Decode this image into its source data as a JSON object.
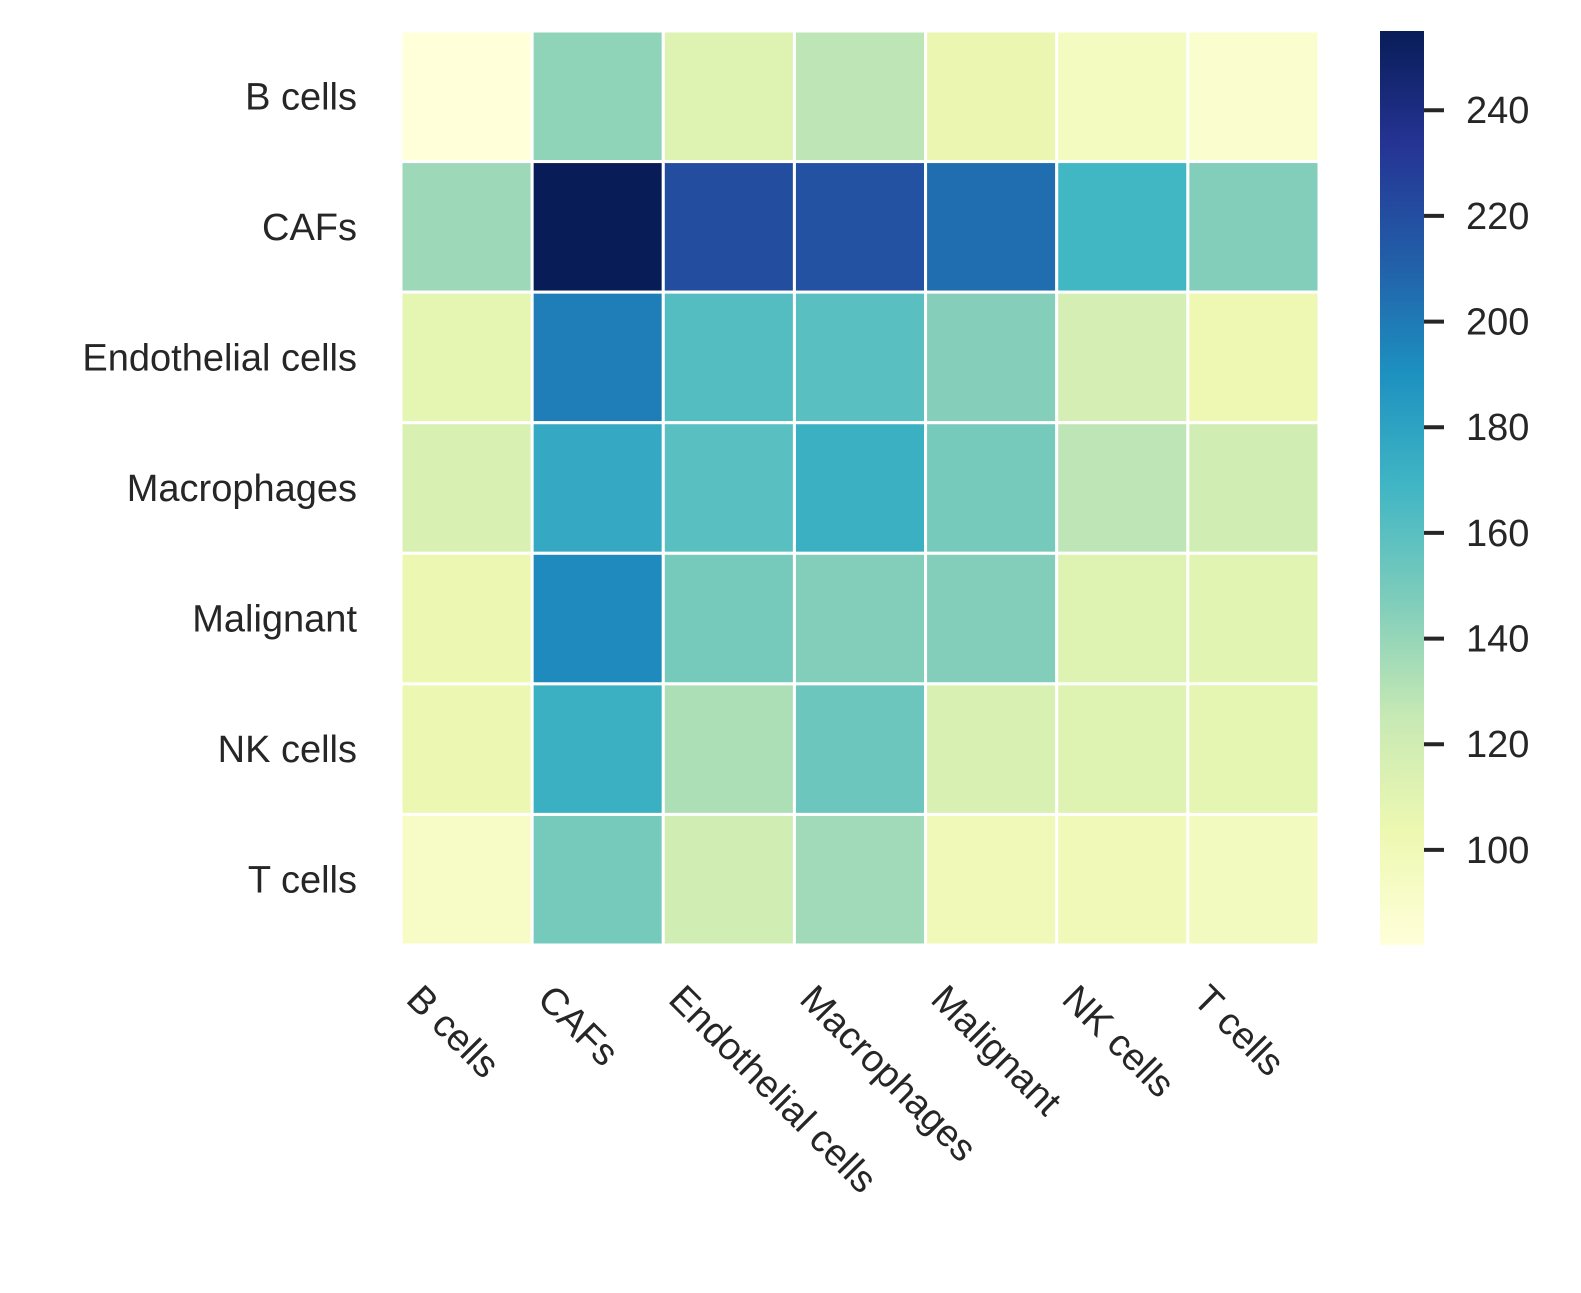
{
  "chart_data": {
    "type": "heatmap",
    "title": "",
    "xlabel": "",
    "ylabel": "",
    "rows": [
      "B cells",
      "CAFs",
      "Endothelial cells",
      "Macrophages",
      "Malignant",
      "NK cells",
      "T cells"
    ],
    "columns": [
      "B cells",
      "CAFs",
      "Endothelial cells",
      "Macrophages",
      "Malignant",
      "NK cells",
      "T cells"
    ],
    "values": [
      [
        82,
        142,
        112,
        128,
        105,
        95,
        88
      ],
      [
        138,
        255,
        220,
        218,
        205,
        168,
        146
      ],
      [
        108,
        198,
        162,
        160,
        145,
        118,
        103
      ],
      [
        115,
        176,
        160,
        172,
        150,
        128,
        120
      ],
      [
        104,
        193,
        150,
        146,
        146,
        112,
        110
      ],
      [
        104,
        172,
        133,
        153,
        115,
        112,
        108
      ],
      [
        92,
        150,
        120,
        137,
        100,
        100,
        96
      ]
    ],
    "colorbar": {
      "colormap": "YlGnBu",
      "range": [
        82,
        255
      ],
      "ticks": [
        100,
        120,
        140,
        160,
        180,
        200,
        220,
        240
      ],
      "tick_labels": [
        "100",
        "120",
        "140",
        "160",
        "180",
        "200",
        "220",
        "240"
      ]
    },
    "cell_border_color": "#ffffff",
    "grid": false,
    "legend": "colorbar-right"
  }
}
